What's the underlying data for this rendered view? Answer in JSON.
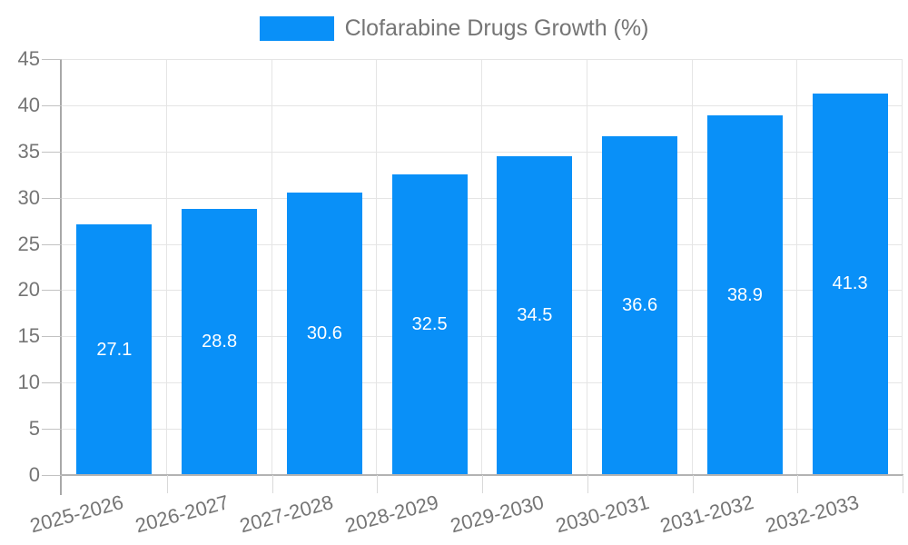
{
  "legend": {
    "items": [
      {
        "label": "Clofarabine Drugs Growth (%)"
      }
    ]
  },
  "chart_data": {
    "type": "bar",
    "title": "Clofarabine Drugs Growth (%)",
    "categories": [
      "2025-2026",
      "2026-2027",
      "2027-2028",
      "2028-2029",
      "2029-2030",
      "2030-2031",
      "2031-2032",
      "2032-2033"
    ],
    "values": [
      27.1,
      28.8,
      30.6,
      32.5,
      34.5,
      36.6,
      38.9,
      41.3
    ],
    "xlabel": "",
    "ylabel": "",
    "ylim": [
      0,
      45
    ],
    "yticks": [
      0,
      5,
      10,
      15,
      20,
      25,
      30,
      35,
      40,
      45
    ],
    "grid": true,
    "legend_position": "top-center",
    "value_labels": "inside-middle",
    "x_label_rotation_deg": -15
  },
  "colors": {
    "bar": "#0990f8",
    "value_label": "#ffffff",
    "axis": "#a8a8a8",
    "grid": "#e5e5e5",
    "tick": "#c2c2c2",
    "text": "#757575",
    "background": "#ffffff"
  }
}
